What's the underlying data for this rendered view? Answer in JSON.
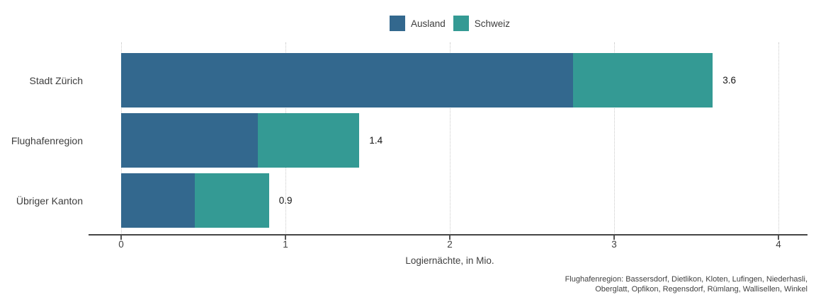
{
  "chart_data": {
    "type": "bar",
    "orientation": "horizontal",
    "stacked": true,
    "categories": [
      "Stadt Zürich",
      "Flughafenregion",
      "Übriger Kanton"
    ],
    "series": [
      {
        "name": "Ausland",
        "color": "#33688e",
        "values": [
          2.75,
          0.83,
          0.45
        ]
      },
      {
        "name": "Schweiz",
        "color": "#349a94",
        "values": [
          0.85,
          0.62,
          0.45
        ]
      }
    ],
    "total_labels": [
      "3.6",
      "1.4",
      "0.9"
    ],
    "title": "",
    "xlabel": "Logiernächte, in Mio.",
    "ylabel": "",
    "xlim": [
      0,
      4
    ],
    "xticks": [
      0,
      1,
      2,
      3,
      4
    ],
    "grid": "vertical-dotted",
    "legend_position": "top-center"
  },
  "footnote": {
    "line1": "Flughafenregion: Bassersdorf, Dietlikon, Kloten, Lufingen, Niederhasli,",
    "line2": "Oberglatt, Opfikon, Regensdorf, Rümlang, Wallisellen, Winkel"
  }
}
